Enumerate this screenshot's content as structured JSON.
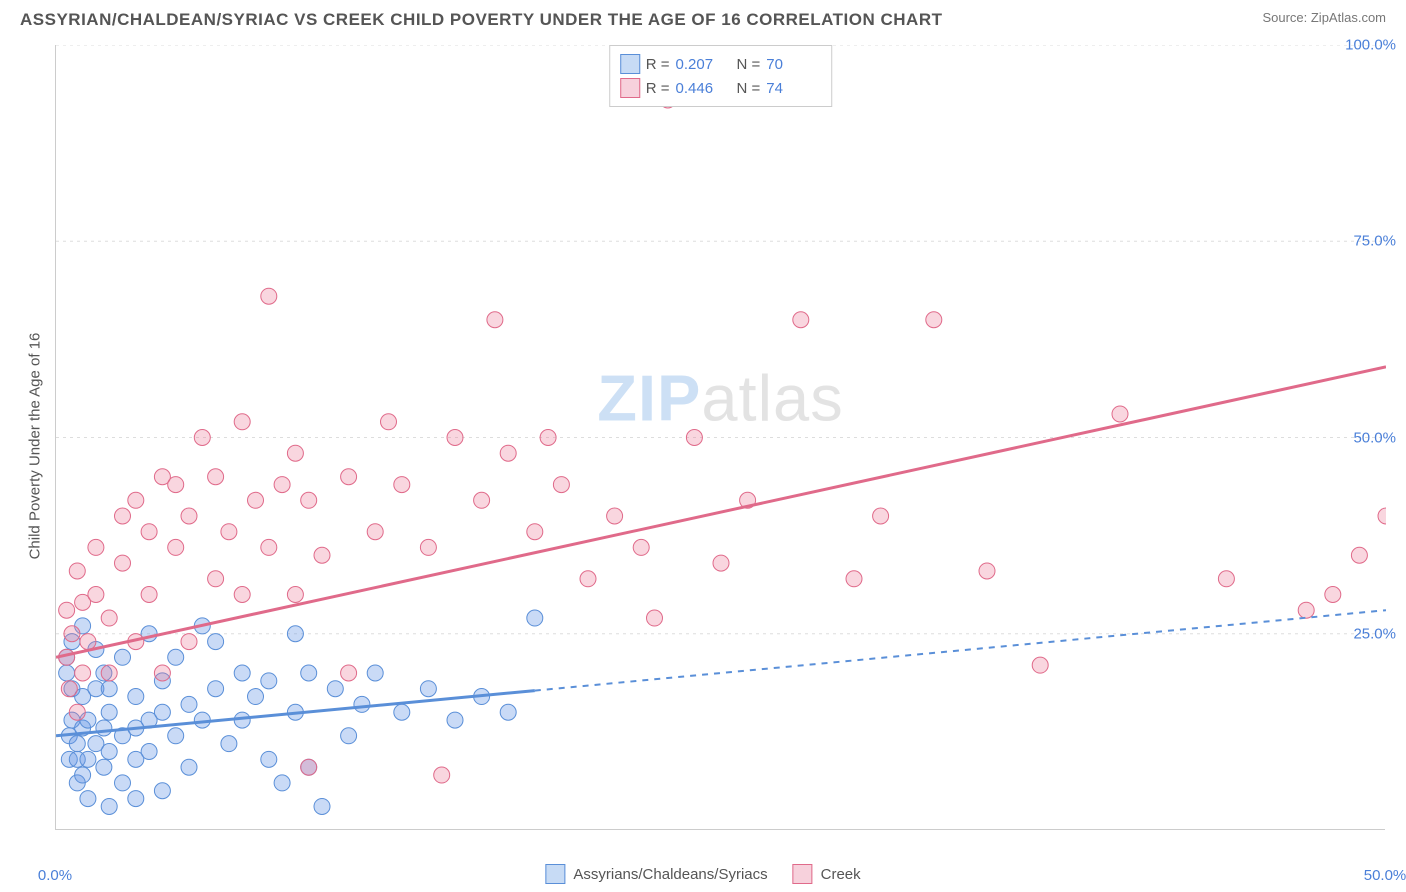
{
  "title": "ASSYRIAN/CHALDEAN/SYRIAC VS CREEK CHILD POVERTY UNDER THE AGE OF 16 CORRELATION CHART",
  "source": "Source: ZipAtlas.com",
  "ylabel": "Child Poverty Under the Age of 16",
  "watermark_a": "ZIP",
  "watermark_b": "atlas",
  "chart": {
    "type": "scatter",
    "xlim": [
      0,
      50
    ],
    "ylim": [
      0,
      100
    ],
    "xticks": [
      0,
      50
    ],
    "xtick_labels": [
      "0.0%",
      "50.0%"
    ],
    "xminors": [
      5,
      10,
      15,
      20,
      25,
      30,
      35,
      40,
      45
    ],
    "yticks": [
      25,
      50,
      75,
      100
    ],
    "ytick_labels": [
      "25.0%",
      "50.0%",
      "75.0%",
      "100.0%"
    ],
    "background": "#ffffff",
    "grid_color": "#dddddd",
    "series": [
      {
        "name": "Assyrians/Chaldeans/Syriacs",
        "color_fill": "rgba(100,150,230,0.35)",
        "color_stroke": "#5a8fd8",
        "swatch_fill": "#c7dbf5",
        "swatch_stroke": "#5a8fd8",
        "r": 0.207,
        "n": 70,
        "trend": {
          "x1": 0,
          "y1": 12,
          "x2": 50,
          "y2": 28,
          "solid_until_x": 18
        },
        "points": [
          [
            0.4,
            20
          ],
          [
            0.4,
            22
          ],
          [
            0.5,
            9
          ],
          [
            0.5,
            12
          ],
          [
            0.6,
            14
          ],
          [
            0.6,
            18
          ],
          [
            0.6,
            24
          ],
          [
            0.8,
            6
          ],
          [
            0.8,
            9
          ],
          [
            0.8,
            11
          ],
          [
            1.0,
            7
          ],
          [
            1.0,
            13
          ],
          [
            1.0,
            17
          ],
          [
            1.0,
            26
          ],
          [
            1.2,
            4
          ],
          [
            1.2,
            9
          ],
          [
            1.2,
            14
          ],
          [
            1.5,
            18
          ],
          [
            1.5,
            23
          ],
          [
            1.5,
            11
          ],
          [
            1.8,
            8
          ],
          [
            1.8,
            13
          ],
          [
            1.8,
            20
          ],
          [
            2.0,
            3
          ],
          [
            2.0,
            10
          ],
          [
            2.0,
            15
          ],
          [
            2.0,
            18
          ],
          [
            2.5,
            6
          ],
          [
            2.5,
            12
          ],
          [
            2.5,
            22
          ],
          [
            3.0,
            4
          ],
          [
            3.0,
            9
          ],
          [
            3.0,
            13
          ],
          [
            3.0,
            17
          ],
          [
            3.5,
            25
          ],
          [
            3.5,
            10
          ],
          [
            3.5,
            14
          ],
          [
            4.0,
            5
          ],
          [
            4.0,
            15
          ],
          [
            4.0,
            19
          ],
          [
            4.5,
            12
          ],
          [
            4.5,
            22
          ],
          [
            5.0,
            8
          ],
          [
            5.0,
            16
          ],
          [
            5.5,
            26
          ],
          [
            5.5,
            14
          ],
          [
            6.0,
            18
          ],
          [
            6.0,
            24
          ],
          [
            6.5,
            11
          ],
          [
            7.0,
            20
          ],
          [
            7.0,
            14
          ],
          [
            7.5,
            17
          ],
          [
            8.0,
            9
          ],
          [
            8.0,
            19
          ],
          [
            8.5,
            6
          ],
          [
            9.0,
            15
          ],
          [
            9.0,
            25
          ],
          [
            9.5,
            20
          ],
          [
            9.5,
            8
          ],
          [
            10.0,
            3
          ],
          [
            10.5,
            18
          ],
          [
            11.0,
            12
          ],
          [
            11.5,
            16
          ],
          [
            12.0,
            20
          ],
          [
            13.0,
            15
          ],
          [
            14.0,
            18
          ],
          [
            15.0,
            14
          ],
          [
            16.0,
            17
          ],
          [
            17.0,
            15
          ],
          [
            18.0,
            27
          ]
        ]
      },
      {
        "name": "Creek",
        "color_fill": "rgba(235,120,150,0.30)",
        "color_stroke": "#e06a8a",
        "swatch_fill": "#f7d1dc",
        "swatch_stroke": "#e06a8a",
        "r": 0.446,
        "n": 74,
        "trend": {
          "x1": 0,
          "y1": 22,
          "x2": 50,
          "y2": 59,
          "solid_until_x": 50
        },
        "points": [
          [
            0.4,
            22
          ],
          [
            0.4,
            28
          ],
          [
            0.5,
            18
          ],
          [
            0.6,
            25
          ],
          [
            0.8,
            15
          ],
          [
            0.8,
            33
          ],
          [
            1.0,
            20
          ],
          [
            1.0,
            29
          ],
          [
            1.2,
            24
          ],
          [
            1.5,
            30
          ],
          [
            1.5,
            36
          ],
          [
            2.0,
            20
          ],
          [
            2.0,
            27
          ],
          [
            2.5,
            34
          ],
          [
            2.5,
            40
          ],
          [
            3.0,
            24
          ],
          [
            3.0,
            42
          ],
          [
            3.5,
            30
          ],
          [
            3.5,
            38
          ],
          [
            4.0,
            20
          ],
          [
            4.0,
            45
          ],
          [
            4.5,
            36
          ],
          [
            4.5,
            44
          ],
          [
            5.0,
            24
          ],
          [
            5.0,
            40
          ],
          [
            5.5,
            50
          ],
          [
            6.0,
            32
          ],
          [
            6.0,
            45
          ],
          [
            6.5,
            38
          ],
          [
            7.0,
            30
          ],
          [
            7.0,
            52
          ],
          [
            7.5,
            42
          ],
          [
            8.0,
            36
          ],
          [
            8.0,
            68
          ],
          [
            8.5,
            44
          ],
          [
            9.0,
            30
          ],
          [
            9.0,
            48
          ],
          [
            9.5,
            42
          ],
          [
            9.5,
            8
          ],
          [
            10.0,
            35
          ],
          [
            11.0,
            20
          ],
          [
            11.0,
            45
          ],
          [
            12.0,
            38
          ],
          [
            12.5,
            52
          ],
          [
            13.0,
            44
          ],
          [
            14.0,
            36
          ],
          [
            14.5,
            7
          ],
          [
            15.0,
            50
          ],
          [
            16.0,
            42
          ],
          [
            16.5,
            65
          ],
          [
            17.0,
            48
          ],
          [
            18.0,
            38
          ],
          [
            18.5,
            50
          ],
          [
            19.0,
            44
          ],
          [
            20.0,
            32
          ],
          [
            21.0,
            40
          ],
          [
            22.0,
            36
          ],
          [
            22.5,
            27
          ],
          [
            23.0,
            93
          ],
          [
            24.0,
            50
          ],
          [
            25.0,
            34
          ],
          [
            26.0,
            42
          ],
          [
            28.0,
            65
          ],
          [
            30.0,
            32
          ],
          [
            31.0,
            40
          ],
          [
            33.0,
            65
          ],
          [
            35.0,
            33
          ],
          [
            37.0,
            21
          ],
          [
            40.0,
            53
          ],
          [
            44.0,
            32
          ],
          [
            47.0,
            28
          ],
          [
            48.0,
            30
          ],
          [
            49.0,
            35
          ],
          [
            50.0,
            40
          ]
        ]
      }
    ]
  },
  "legend_bottom": [
    {
      "label": "Assyrians/Chaldeans/Syriacs",
      "fill": "#c7dbf5",
      "stroke": "#5a8fd8"
    },
    {
      "label": "Creek",
      "fill": "#f7d1dc",
      "stroke": "#e06a8a"
    }
  ]
}
